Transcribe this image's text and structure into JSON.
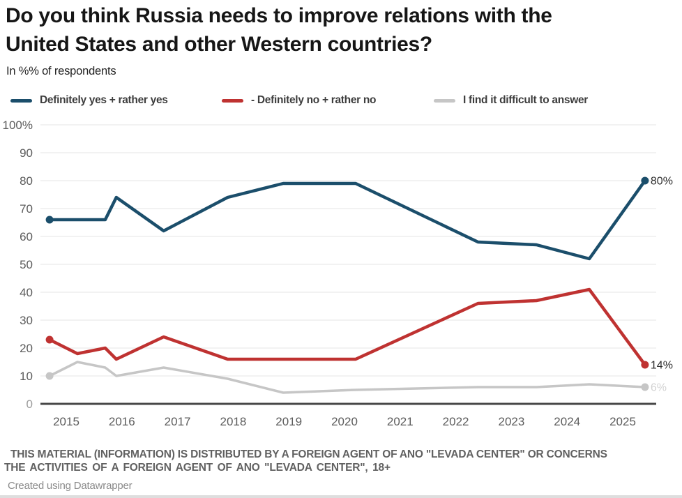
{
  "header": {
    "title_line1": "Do you think Russia needs to improve relations with the",
    "title_line2": "United States and other Western countries?",
    "subtitle": "In %% of respondents"
  },
  "chart_data": {
    "type": "line",
    "title": "Do you think Russia needs to improve relations with the United States and other Western countries?",
    "subtitle": "In %% of respondents",
    "x": [
      2014.7,
      2015.2,
      2015.7,
      2015.9,
      2016.75,
      2017.9,
      2018.9,
      2020.2,
      2022.4,
      2023.45,
      2024.4,
      2025.4
    ],
    "x_ticks": [
      "2015",
      "2016",
      "2017",
      "2018",
      "2019",
      "2020",
      "2021",
      "2022",
      "2023",
      "2024",
      "2025"
    ],
    "y_ticks": [
      "100%",
      "90",
      "80",
      "70",
      "60",
      "50",
      "40",
      "30",
      "20",
      "10",
      "0"
    ],
    "ylim": [
      0,
      100
    ],
    "xlim": [
      2014.55,
      2025.6
    ],
    "grid": "horizontal, every 10%",
    "legend_position": "top",
    "series": [
      {
        "name": "Definitely yes + rather yes",
        "color": "#1b4e6b",
        "end_label": "80%",
        "values": [
          66,
          66,
          66,
          74,
          62,
          74,
          79,
          79,
          58,
          57,
          52,
          80
        ]
      },
      {
        "name": "- Definitely no + rather no",
        "color": "#bf3231",
        "end_label": "14%",
        "values": [
          23,
          18,
          20,
          16,
          24,
          16,
          16,
          16,
          36,
          37,
          41,
          14
        ]
      },
      {
        "name": "I find it difficult to answer",
        "color": "#c6c6c6",
        "end_label": "6%",
        "end_label_faint": true,
        "values": [
          10,
          15,
          13,
          10,
          13,
          9,
          4,
          5,
          6,
          6,
          7,
          6
        ]
      }
    ]
  },
  "footer": {
    "disclaimer_line1": "THIS MATERIAL (INFORMATION) IS DISTRIBUTED BY A FOREIGN AGENT OF ANO \"LEVADA CENTER\" OR CONCERNS",
    "disclaimer_line2": "THE ACTIVITIES OF A FOREIGN AGENT OF ANO \"LEVADA CENTER\", 18+",
    "credit": "Created using Datawrapper"
  }
}
